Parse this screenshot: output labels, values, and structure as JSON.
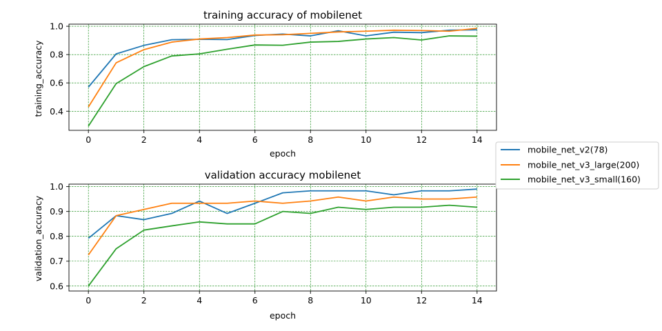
{
  "chart_data": [
    {
      "type": "line",
      "title": "training accuracy of mobilenet",
      "xlabel": "epoch",
      "ylabel": "training_accuracy",
      "xlim": [
        -0.7,
        14.7
      ],
      "ylim": [
        0.265,
        1.015
      ],
      "xticks": [
        0,
        2,
        4,
        6,
        8,
        10,
        12,
        14
      ],
      "yticks": [
        0.4,
        0.6,
        0.8,
        1.0
      ],
      "ytick_labels": [
        "0.4",
        "0.6",
        "0.8",
        "1.0"
      ],
      "grid": true,
      "x": [
        0,
        1,
        2,
        3,
        4,
        5,
        6,
        7,
        8,
        9,
        10,
        11,
        12,
        13,
        14
      ],
      "series": [
        {
          "name": "mobile_net_v2(78)",
          "color": "#1f77b4",
          "values": [
            0.57,
            0.805,
            0.865,
            0.905,
            0.908,
            0.906,
            0.935,
            0.945,
            0.932,
            0.968,
            0.932,
            0.958,
            0.955,
            0.972,
            0.975
          ]
        },
        {
          "name": "mobile_net_v3_large(200)",
          "color": "#ff7f0e",
          "values": [
            0.43,
            0.742,
            0.835,
            0.888,
            0.91,
            0.92,
            0.938,
            0.94,
            0.95,
            0.96,
            0.965,
            0.972,
            0.97,
            0.965,
            0.985
          ]
        },
        {
          "name": "mobile_net_v3_small(160)",
          "color": "#2ca02c",
          "values": [
            0.295,
            0.595,
            0.715,
            0.79,
            0.805,
            0.838,
            0.868,
            0.866,
            0.888,
            0.893,
            0.91,
            0.92,
            0.903,
            0.932,
            0.93
          ]
        }
      ]
    },
    {
      "type": "line",
      "title": "validation accuracy mobilenet",
      "xlabel": "epoch",
      "ylabel": "validation_accuracy",
      "xlim": [
        -0.7,
        14.7
      ],
      "ylim": [
        0.58,
        1.01
      ],
      "xticks": [
        0,
        2,
        4,
        6,
        8,
        10,
        12,
        14
      ],
      "yticks": [
        0.6,
        0.7,
        0.8,
        0.9,
        1.0
      ],
      "ytick_labels": [
        "0.6",
        "0.7",
        "0.8",
        "0.9",
        "1.0"
      ],
      "grid": true,
      "x": [
        0,
        1,
        2,
        3,
        4,
        5,
        6,
        7,
        8,
        9,
        10,
        11,
        12,
        13,
        14
      ],
      "series": [
        {
          "name": "mobile_net_v2(78)",
          "color": "#1f77b4",
          "values": [
            0.792,
            0.883,
            0.867,
            0.892,
            0.942,
            0.892,
            0.933,
            0.975,
            0.983,
            0.983,
            0.983,
            0.967,
            0.983,
            0.983,
            0.99
          ]
        },
        {
          "name": "mobile_net_v3_large(200)",
          "color": "#ff7f0e",
          "values": [
            0.725,
            0.883,
            0.908,
            0.933,
            0.933,
            0.933,
            0.942,
            0.933,
            0.942,
            0.958,
            0.942,
            0.958,
            0.95,
            0.95,
            0.958
          ]
        },
        {
          "name": "mobile_net_v3_small(160)",
          "color": "#2ca02c",
          "values": [
            0.6,
            0.75,
            0.825,
            0.842,
            0.858,
            0.85,
            0.85,
            0.9,
            0.892,
            0.917,
            0.908,
            0.917,
            0.917,
            0.925,
            0.917
          ]
        }
      ]
    }
  ],
  "legend": {
    "placement": "right",
    "entries": [
      {
        "label": "mobile_net_v2(78)",
        "color": "#1f77b4"
      },
      {
        "label": "mobile_net_v3_large(200)",
        "color": "#ff7f0e"
      },
      {
        "label": "mobile_net_v3_small(160)",
        "color": "#2ca02c"
      }
    ]
  }
}
